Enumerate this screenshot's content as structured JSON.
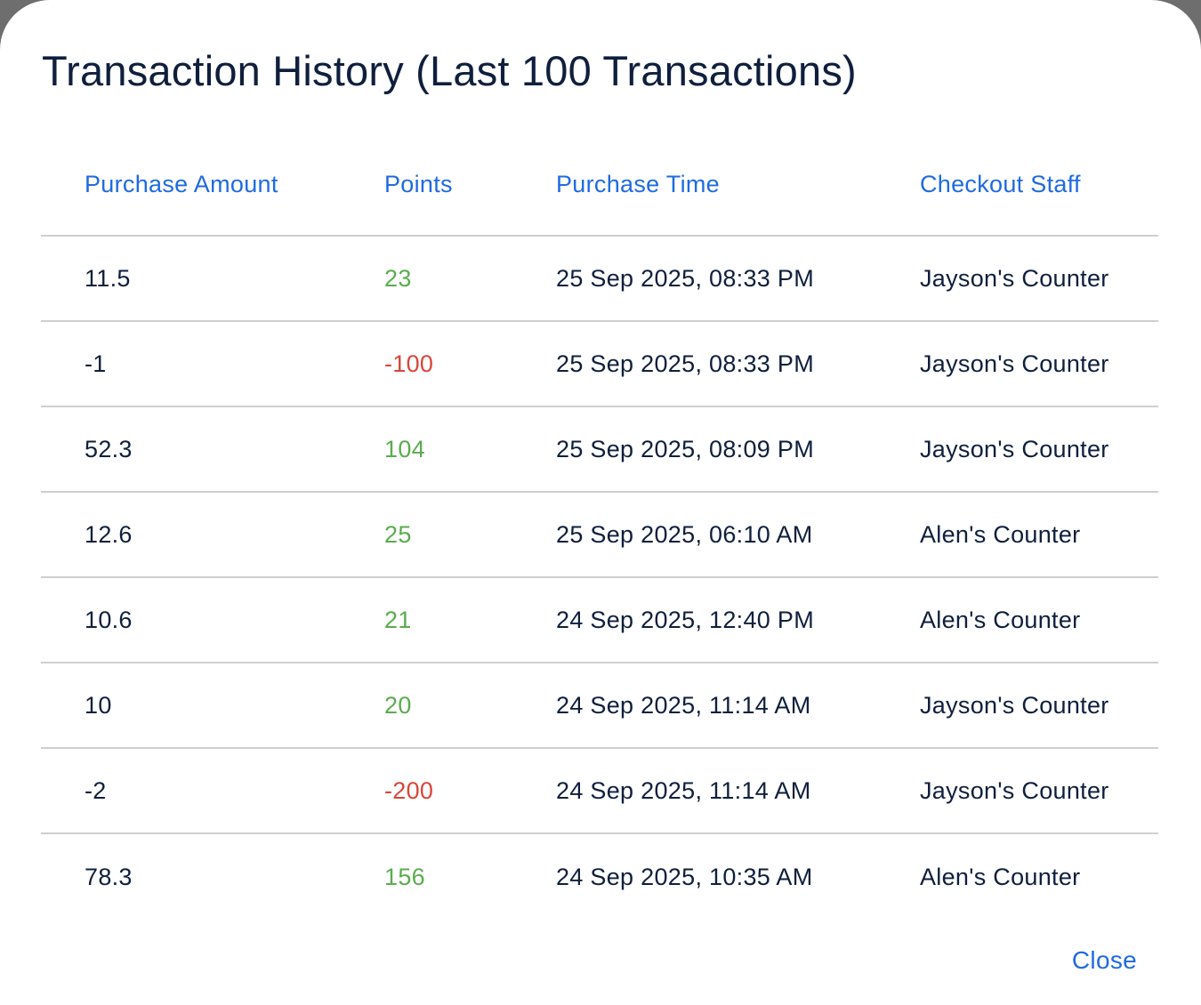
{
  "dialog": {
    "title": "Transaction History (Last 100 Transactions)",
    "close_label": "Close"
  },
  "table": {
    "headers": [
      "Purchase Amount",
      "Points",
      "Purchase Time",
      "Checkout Staff"
    ],
    "rows": [
      {
        "amount": "11.5",
        "points": "23",
        "time": "25 Sep 2025, 08:33 PM",
        "staff": "Jayson's Counter"
      },
      {
        "amount": "-1",
        "points": "-100",
        "time": "25 Sep 2025, 08:33 PM",
        "staff": "Jayson's Counter"
      },
      {
        "amount": "52.3",
        "points": "104",
        "time": "25 Sep 2025, 08:09 PM",
        "staff": "Jayson's Counter"
      },
      {
        "amount": "12.6",
        "points": "25",
        "time": "25 Sep 2025, 06:10 AM",
        "staff": "Alen's Counter"
      },
      {
        "amount": "10.6",
        "points": "21",
        "time": "24 Sep 2025, 12:40 PM",
        "staff": "Alen's Counter"
      },
      {
        "amount": "10",
        "points": "20",
        "time": "24 Sep 2025, 11:14 AM",
        "staff": "Jayson's Counter"
      },
      {
        "amount": "-2",
        "points": "-200",
        "time": "24 Sep 2025, 11:14 AM",
        "staff": "Jayson's Counter"
      },
      {
        "amount": "78.3",
        "points": "156",
        "time": "24 Sep 2025, 10:35 AM",
        "staff": "Alen's Counter"
      }
    ]
  },
  "colors": {
    "accent": "#1f6be0",
    "positive_points": "#5aac4e",
    "negative_points": "#d9453a",
    "text": "#0f1f3d"
  }
}
